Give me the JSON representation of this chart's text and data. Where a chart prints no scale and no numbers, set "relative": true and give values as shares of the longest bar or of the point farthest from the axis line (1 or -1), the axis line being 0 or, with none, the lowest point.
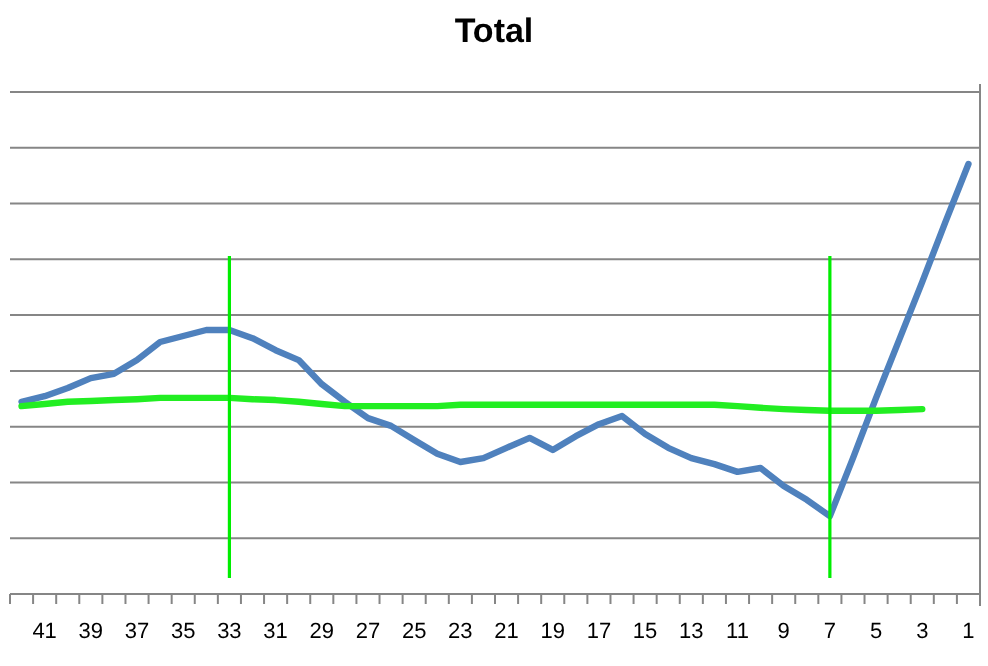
{
  "chart_data": {
    "type": "line",
    "title": "Total",
    "relative": true,
    "grid": "y",
    "marker": "none",
    "line_style": "solid",
    "categories": [
      null,
      "41",
      null,
      "39",
      null,
      "37",
      null,
      "35",
      null,
      "33",
      null,
      "31",
      null,
      "29",
      null,
      "27",
      null,
      "25",
      null,
      "23",
      null,
      "21",
      null,
      "19",
      null,
      "17",
      null,
      "15",
      null,
      "13",
      null,
      "11",
      null,
      "9",
      null,
      "7",
      null,
      "5",
      null,
      "3",
      null,
      "1"
    ],
    "series": [
      {
        "color": "#4f81bd",
        "values": [
          0.447,
          0.46,
          0.479,
          0.502,
          0.512,
          0.544,
          0.586,
          0.6,
          0.614,
          0.614,
          0.595,
          0.567,
          0.544,
          0.488,
          0.447,
          0.409,
          0.391,
          0.358,
          0.326,
          0.307,
          0.316,
          0.34,
          0.363,
          0.335,
          0.367,
          0.395,
          0.414,
          0.372,
          0.34,
          0.316,
          0.302,
          0.284,
          0.293,
          0.251,
          0.219,
          0.181,
          0.316,
          0.456,
          0.591,
          0.726,
          0.865,
          1
        ]
      },
      {
        "color": "#22ee22",
        "values": [
          0.437,
          0.442,
          0.447,
          0.449,
          0.451,
          0.453,
          0.456,
          0.456,
          0.456,
          0.456,
          0.453,
          0.451,
          0.447,
          0.442,
          0.437,
          0.437,
          0.437,
          0.437,
          0.437,
          0.44,
          0.44,
          0.44,
          0.44,
          0.44,
          0.44,
          0.44,
          0.44,
          0.44,
          0.44,
          0.44,
          0.44,
          0.437,
          0.433,
          0.43,
          0.428,
          0.426,
          0.426,
          0.426,
          0.428,
          0.43,
          null,
          null
        ]
      }
    ],
    "ref_lines": [
      {
        "axis": "x",
        "value": "33",
        "color": "#00ee00"
      },
      {
        "axis": "x",
        "value": "7",
        "color": "#00ee00"
      }
    ]
  }
}
